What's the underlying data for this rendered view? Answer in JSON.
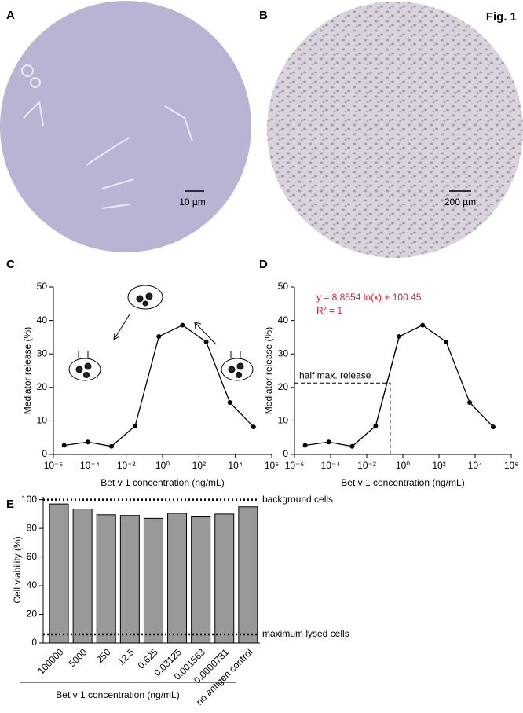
{
  "figure_label": "Fig. 1",
  "panels": {
    "A": {
      "label": "A",
      "scale_bar": "10 µm"
    },
    "B": {
      "label": "B",
      "scale_bar": "200 µm"
    },
    "C": {
      "label": "C"
    },
    "D": {
      "label": "D"
    },
    "E": {
      "label": "E"
    }
  },
  "chart_data": [
    {
      "type": "line",
      "xscale": "log",
      "color": "#000000",
      "x": [
        3.9e-06,
        7.8125e-05,
        0.0015625,
        0.03125,
        0.625,
        12.5,
        250,
        5000,
        100000
      ],
      "values": [
        2.7,
        3.7,
        2.4,
        8.5,
        35.2,
        38.6,
        33.6,
        15.5,
        8.2
      ],
      "xlabel": "Bet v 1 concentration (ng/mL)",
      "ylabel": "Mediator release (%)",
      "xlim": [
        1e-06,
        1000000
      ],
      "xticks": [
        {
          "value": 1e-06,
          "label": "10⁻⁶"
        },
        {
          "value": 0.0001,
          "label": "10⁻⁴"
        },
        {
          "value": 0.01,
          "label": "10⁻²"
        },
        {
          "value": 1,
          "label": "10⁰"
        },
        {
          "value": 100,
          "label": "10²"
        },
        {
          "value": 10000,
          "label": "10⁴"
        },
        {
          "value": 1000000,
          "label": "10⁶"
        }
      ],
      "ylim": [
        0,
        50
      ],
      "yticks": [
        0,
        10,
        20,
        30,
        40,
        50
      ]
    },
    {
      "type": "line",
      "xscale": "log",
      "color": "#000000",
      "x": [
        3.9e-06,
        7.8125e-05,
        0.0015625,
        0.03125,
        0.625,
        12.5,
        250,
        5000,
        100000
      ],
      "values": [
        2.7,
        3.7,
        2.4,
        8.5,
        35.2,
        38.6,
        33.6,
        15.5,
        8.2
      ],
      "xlabel": "Bet v 1 concentration (ng/mL)",
      "ylabel": "Mediator release (%)",
      "xlim": [
        1e-06,
        1000000
      ],
      "xticks": [
        {
          "value": 1e-06,
          "label": "10⁻⁶"
        },
        {
          "value": 0.0001,
          "label": "10⁻⁴"
        },
        {
          "value": 0.01,
          "label": "10⁻²"
        },
        {
          "value": 1,
          "label": "10⁰"
        },
        {
          "value": 100,
          "label": "10²"
        },
        {
          "value": 10000,
          "label": "10⁴"
        },
        {
          "value": 1000000,
          "label": "10⁶"
        }
      ],
      "ylim": [
        0,
        50
      ],
      "yticks": [
        0,
        10,
        20,
        30,
        40,
        50
      ],
      "equation": "y = 8.8554 ln(x) + 100.45",
      "r_squared": "R² = 1",
      "half_max_label": "half max. release",
      "half_max": {
        "x": 0.2,
        "y": 21.3
      }
    },
    {
      "type": "bar",
      "color": "#999999",
      "categories": [
        "100000",
        "5000",
        "250",
        "12.5",
        "0.625",
        "0.03125",
        "0.001563",
        "0.0000781",
        "no antigen control"
      ],
      "values": [
        97,
        93.5,
        89.5,
        89,
        87,
        90.5,
        88,
        90,
        95
      ],
      "xlabel": "Bet v 1 concentration (ng/mL)",
      "ylabel": "Cell viability (%)",
      "ylim": [
        0,
        102
      ],
      "yticks": [
        0,
        20,
        40,
        60,
        80,
        100
      ],
      "reference_lines": [
        {
          "value": 100,
          "label": "background cells"
        },
        {
          "value": 6,
          "label": "maximum lysed cells"
        }
      ]
    }
  ]
}
